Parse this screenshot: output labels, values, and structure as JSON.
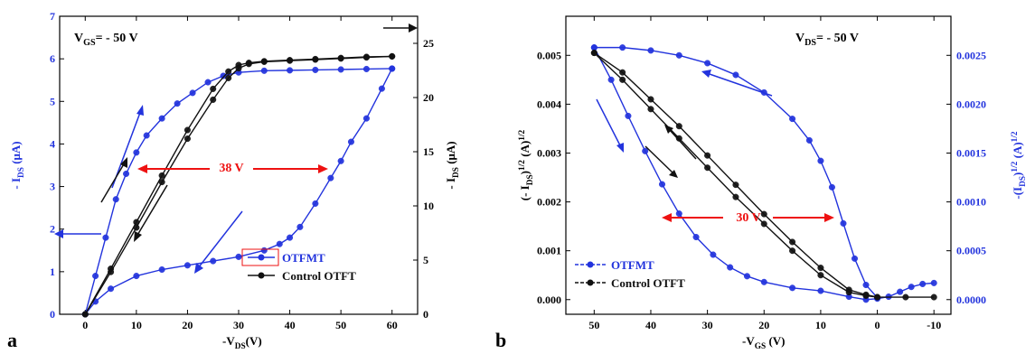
{
  "colors": {
    "blue": "#2233dd",
    "black": "#111111",
    "red": "#ee1111"
  },
  "chart_data": [
    {
      "type": "line",
      "panel_label": "a",
      "condition": "V_GS= - 50 V",
      "xlabel": "-V_DS(V)",
      "ylabel_left": "- I_DS (μA)",
      "ylabel_right": "- I_DS (μA)",
      "xlim": [
        -5,
        65
      ],
      "ylim_left": [
        0,
        7
      ],
      "ylim_right": [
        0,
        27.5
      ],
      "x_ticks": [
        0,
        10,
        20,
        30,
        40,
        50,
        60
      ],
      "y_ticks_left": [
        0,
        1,
        2,
        3,
        4,
        5,
        6,
        7
      ],
      "y_ticks_right": [
        0,
        5,
        10,
        15,
        20,
        25
      ],
      "annotation": "38 V",
      "legend": [
        "OTFMT",
        "Control OTFT"
      ],
      "legend_position": "bottom-right",
      "series": [
        {
          "name": "OTFMT",
          "axis": "left",
          "color": "blue",
          "forward": {
            "x": [
              0,
              2,
              4,
              6,
              8,
              10,
              12,
              15,
              18,
              21,
              24,
              27,
              30,
              35,
              40,
              45,
              50,
              55,
              60
            ],
            "y": [
              0,
              0.9,
              1.8,
              2.7,
              3.3,
              3.8,
              4.2,
              4.6,
              4.95,
              5.2,
              5.45,
              5.6,
              5.68,
              5.72,
              5.73,
              5.74,
              5.75,
              5.76,
              5.77
            ]
          },
          "reverse": {
            "x": [
              60,
              58,
              55,
              52,
              50,
              48,
              45,
              42,
              40,
              38,
              35,
              30,
              25,
              20,
              15,
              10,
              5,
              2,
              0
            ],
            "y": [
              5.77,
              5.3,
              4.6,
              4.05,
              3.6,
              3.2,
              2.6,
              2.05,
              1.8,
              1.65,
              1.5,
              1.35,
              1.25,
              1.15,
              1.05,
              0.9,
              0.6,
              0.3,
              0
            ]
          }
        },
        {
          "name": "Control OTFT",
          "axis": "right",
          "color": "black",
          "forward": {
            "x": [
              0,
              5,
              10,
              15,
              20,
              25,
              28,
              30,
              32,
              35,
              40,
              45,
              50,
              55,
              60
            ],
            "y": [
              0,
              4.2,
              8.5,
              12.8,
              17,
              20.8,
              22.4,
              23,
              23.2,
              23.35,
              23.45,
              23.55,
              23.65,
              23.75,
              23.8
            ]
          },
          "reverse": {
            "x": [
              60,
              55,
              50,
              45,
              40,
              35,
              32,
              30,
              28,
              25,
              20,
              15,
              10,
              5,
              0
            ],
            "y": [
              23.8,
              23.7,
              23.6,
              23.5,
              23.4,
              23.3,
              23.1,
              22.7,
              21.8,
              19.8,
              16.2,
              12.2,
              8,
              3.9,
              0
            ]
          }
        }
      ]
    },
    {
      "type": "line",
      "panel_label": "b",
      "condition": "V_DS= - 50 V",
      "xlabel": "-V_GS (V)",
      "ylabel_left": "(- I_DS)^1/2 (A)^1/2",
      "ylabel_right": "-(I_DS)^1/2 (A)^1/2",
      "xlim": [
        55,
        -13
      ],
      "ylim_left": [
        -0.0003,
        0.0058
      ],
      "ylim_right": [
        -0.00015,
        0.0029
      ],
      "x_ticks": [
        50,
        40,
        30,
        20,
        10,
        0,
        -10
      ],
      "y_ticks_left": [
        0.0,
        0.001,
        0.002,
        0.003,
        0.004,
        0.005
      ],
      "y_ticks_right": [
        0.0,
        0.0005,
        0.001,
        0.0015,
        0.002,
        0.0025
      ],
      "annotation": "30 V",
      "legend": [
        "OTFMT",
        "Control OTFT"
      ],
      "legend_position": "bottom-left",
      "series": [
        {
          "name": "OTFMT",
          "axis": "right",
          "color": "blue",
          "forward": {
            "x": [
              50,
              47,
              44,
              41,
              38,
              35,
              32,
              29,
              26,
              23,
              20,
              15,
              10,
              5,
              2,
              0,
              -2,
              -4,
              -6,
              -8,
              -10
            ],
            "y": [
              0.00258,
              0.00225,
              0.00188,
              0.00152,
              0.00118,
              0.00088,
              0.00064,
              0.00046,
              0.00033,
              0.00024,
              0.00018,
              0.00012,
              9e-05,
              3e-05,
              0.0,
              1e-05,
              3e-05,
              8e-05,
              0.00013,
              0.00016,
              0.00017
            ]
          },
          "reverse": {
            "x": [
              50,
              45,
              40,
              35,
              30,
              25,
              20,
              15,
              12,
              10,
              8,
              6,
              4,
              2,
              0
            ],
            "y": [
              0.00258,
              0.00258,
              0.00255,
              0.0025,
              0.00242,
              0.0023,
              0.00212,
              0.00185,
              0.00163,
              0.00142,
              0.00115,
              0.00078,
              0.00042,
              0.00015,
              2e-05
            ]
          }
        },
        {
          "name": "Control OTFT",
          "axis": "left",
          "color": "black",
          "forward": {
            "x": [
              50,
              45,
              40,
              35,
              30,
              25,
              20,
              15,
              10,
              5,
              2,
              0,
              -5,
              -10
            ],
            "y": [
              0.00505,
              0.0045,
              0.0039,
              0.0033,
              0.0027,
              0.0021,
              0.00155,
              0.001,
              0.0005,
              0.00015,
              8e-05,
              5e-05,
              5e-05,
              5e-05
            ]
          },
          "reverse": {
            "x": [
              50,
              45,
              40,
              35,
              30,
              25,
              20,
              15,
              10,
              5,
              2,
              0
            ],
            "y": [
              0.00505,
              0.00465,
              0.0041,
              0.00355,
              0.00295,
              0.00235,
              0.00175,
              0.00118,
              0.00065,
              0.0002,
              0.0001,
              5e-05
            ]
          }
        }
      ]
    }
  ]
}
